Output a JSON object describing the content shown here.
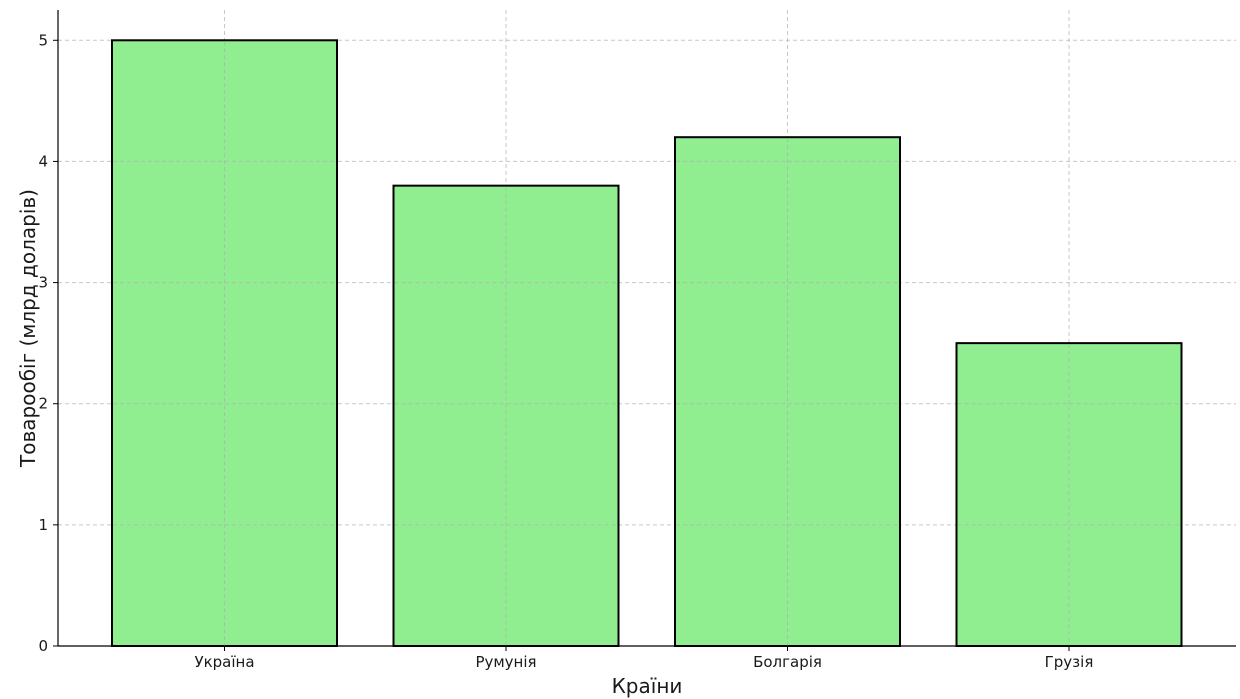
{
  "chart_data": {
    "type": "bar",
    "categories": [
      "Україна",
      "Румунія",
      "Болгарія",
      "Грузія"
    ],
    "values": [
      5.0,
      3.8,
      4.2,
      2.5
    ],
    "title": "",
    "xlabel": "Країни",
    "ylabel": "Товарообіг (млрд доларів)",
    "ylim": [
      0,
      5.25
    ],
    "yticks": [
      0,
      1,
      2,
      3,
      4,
      5
    ],
    "grid": true,
    "legend": "none",
    "bar_color": "#90ee90",
    "edge_color": "#000000"
  }
}
